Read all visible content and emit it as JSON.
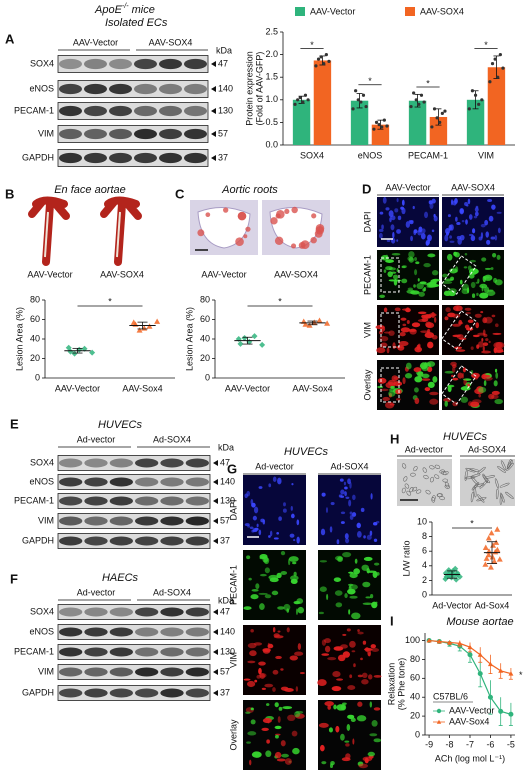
{
  "panel_A": {
    "letter": "A",
    "title": {
      "main": "ApoE",
      "sup": "-/-",
      "rest": " mice"
    },
    "subtitle": "Isolated ECs",
    "blot": {
      "header": [
        "AAV-Vector",
        "AAV-SOX4"
      ],
      "unit": "kDa",
      "rows": [
        {
          "label": "SOX4",
          "size": "47"
        },
        {
          "label": "eNOS",
          "size": "140"
        },
        {
          "label": "PECAM-1",
          "size": "130"
        },
        {
          "label": "VIM",
          "size": "57"
        },
        {
          "label": "GAPDH",
          "size": "37"
        }
      ]
    }
  },
  "panel_B": {
    "letter": "B",
    "title": "En face aortae",
    "image_labels": [
      "AAV-Vector",
      "AAV-SOX4"
    ]
  },
  "panel_C": {
    "letter": "C",
    "title": "Aortic roots",
    "image_labels": [
      "AAV-Vector",
      "AAV-SOX4"
    ]
  },
  "panel_D": {
    "letter": "D",
    "header": [
      "AAV-Vector",
      "AAV-SOX4"
    ],
    "rows": [
      "DAPI",
      "PECAM-1",
      "VIM",
      "Overlay"
    ]
  },
  "panel_E": {
    "letter": "E",
    "title": "HUVECs",
    "blot": {
      "header": [
        "Ad-vector",
        "Ad-SOX4"
      ],
      "unit": "kDa",
      "rows": [
        {
          "label": "SOX4",
          "size": "47"
        },
        {
          "label": "eNOS",
          "size": "140"
        },
        {
          "label": "PECAM-1",
          "size": "130"
        },
        {
          "label": "VIM",
          "size": "57"
        },
        {
          "label": "GAPDH",
          "size": "37"
        }
      ]
    }
  },
  "panel_F": {
    "letter": "F",
    "title": "HAECs",
    "blot": {
      "header": [
        "Ad-vector",
        "Ad-SOX4"
      ],
      "unit": "kDa",
      "rows": [
        {
          "label": "SOX4",
          "size": "47"
        },
        {
          "label": "eNOS",
          "size": "140"
        },
        {
          "label": "PECAM-1",
          "size": "130"
        },
        {
          "label": "VIM",
          "size": "57"
        },
        {
          "label": "GAPDH",
          "size": "37"
        }
      ]
    }
  },
  "panel_G": {
    "letter": "G",
    "title": "HUVECs",
    "header": [
      "Ad-vector",
      "Ad-SOX4"
    ],
    "rows": [
      "DAPI",
      "PECAM-1",
      "VIM",
      "Overlay"
    ]
  },
  "panel_H": {
    "letter": "H",
    "title": "HUVECs",
    "header": [
      "Ad-vector",
      "Ad-SOX4"
    ]
  },
  "panel_I": {
    "letter": "I"
  },
  "chart_data": [
    {
      "type": "bar",
      "ylabel": [
        "Protein expression",
        "(Fold of AAV-GFP)"
      ],
      "categories": [
        "SOX4",
        "eNOS",
        "PECAM-1",
        "VIM"
      ],
      "series": [
        {
          "name": "AAV-Vector",
          "color": "#2fb47c",
          "values": [
            1.0,
            0.98,
            0.98,
            1.0
          ],
          "errors": [
            0.08,
            0.16,
            0.14,
            0.2
          ],
          "points": [
            [
              0.9,
              1.0,
              1.05,
              0.95,
              1.1,
              1.0
            ],
            [
              0.8,
              1.2,
              1.0,
              0.95,
              1.1,
              0.85
            ],
            [
              0.85,
              1.15,
              1.0,
              0.9,
              1.1,
              0.95
            ],
            [
              0.8,
              1.2,
              1.1,
              0.9,
              1.0
            ]
          ]
        },
        {
          "name": "AAV-SOX4",
          "color": "#f26522",
          "values": [
            1.87,
            0.45,
            0.62,
            1.72
          ],
          "errors": [
            0.1,
            0.1,
            0.18,
            0.25
          ],
          "points": [
            [
              1.75,
              1.9,
              1.95,
              1.8,
              2.0,
              1.85
            ],
            [
              0.35,
              0.5,
              0.45,
              0.4,
              0.55,
              0.42
            ],
            [
              0.4,
              0.8,
              0.6,
              0.5,
              0.7,
              0.75
            ],
            [
              1.4,
              1.8,
              1.9,
              1.5,
              2.0,
              1.7
            ]
          ]
        }
      ],
      "annotations": [
        "*",
        "*",
        "*",
        "*"
      ],
      "legend": "top",
      "ylim": [
        0,
        2.5
      ],
      "yticks": [
        {
          "value": 0,
          "label": "0.0"
        },
        {
          "value": 0.5,
          "label": "0.5"
        },
        {
          "value": 1,
          "label": "1.0"
        },
        {
          "value": 1.5,
          "label": "1.5"
        },
        {
          "value": 2,
          "label": "2.0"
        },
        {
          "value": 2.5,
          "label": "2.5"
        }
      ]
    },
    {
      "type": "dot",
      "ylabel": "Lesion Area (%)",
      "categories": [
        "AAV-Vector",
        "AAV-Sox4"
      ],
      "colors": [
        "#2fb47c",
        "#f26522"
      ],
      "markers": [
        "diamond",
        "triangle"
      ],
      "points": [
        [
          31,
          27,
          25,
          29,
          30,
          26
        ],
        [
          57,
          55,
          49,
          51,
          53,
          58
        ]
      ],
      "means": [
        28,
        53.8
      ],
      "errors": [
        2.4,
        3.5
      ],
      "annotation": "*",
      "ylim": [
        0,
        80
      ],
      "yticks": [
        0,
        20,
        40,
        60,
        80
      ]
    },
    {
      "type": "dot",
      "ylabel": "Lesion Area (%)",
      "categories": [
        "AAV-Vector",
        "AAV-Sox4"
      ],
      "colors": [
        "#2fb47c",
        "#f26522"
      ],
      "markers": [
        "diamond",
        "triangle"
      ],
      "points": [
        [
          40,
          35,
          41,
          37,
          43,
          34
        ],
        [
          58,
          55,
          54,
          57,
          59,
          56
        ]
      ],
      "means": [
        38.3,
        56.5
      ],
      "errors": [
        3.5,
        1.9
      ],
      "annotation": "*",
      "ylim": [
        0,
        80
      ],
      "yticks": [
        0,
        20,
        40,
        60,
        80
      ]
    },
    {
      "type": "dot",
      "ylabel": "L/W ratio",
      "categories": [
        "Ad-Vector",
        "Ad-Sox4"
      ],
      "colors": [
        "#2fb47c",
        "#f26522"
      ],
      "markers": [
        "diamond",
        "triangle"
      ],
      "points": [
        [
          2.5,
          3.0,
          2.2,
          3.4,
          2.8,
          2.6,
          3.1,
          2.4,
          2.9,
          3.3,
          2.7,
          2.1,
          3.6,
          2.8,
          2.5,
          3.0
        ],
        [
          5.0,
          6.5,
          4.2,
          7.8,
          5.5,
          6.0,
          3.8,
          8.5,
          5.2,
          6.8,
          4.6,
          7.2,
          5.9,
          9.0,
          4.9,
          6.2
        ]
      ],
      "means": [
        2.8,
        5.8
      ],
      "errors": [
        0.5,
        1.5
      ],
      "annotation": "*",
      "ylim": [
        0,
        10
      ],
      "yticks": [
        0,
        2,
        4,
        6,
        8,
        10
      ]
    },
    {
      "type": "line",
      "title": "Mouse aortae",
      "xlabel": "ACh (log mol L⁻¹)",
      "ylabel": [
        "Relaxation",
        "(% Phe tone)"
      ],
      "legend_title": "C57BL/6",
      "legend": "lower left",
      "x": [
        -9,
        -8.5,
        -8,
        -7.5,
        -7,
        -6.5,
        -6,
        -5.5,
        -5
      ],
      "series": [
        {
          "name": "AAV-Vector",
          "color": "#2fb47c",
          "marker": "circle",
          "values": [
            100,
            99,
            97,
            94,
            85,
            65,
            40,
            25,
            22
          ],
          "errors": [
            1,
            2,
            3,
            5,
            8,
            14,
            18,
            15,
            12
          ]
        },
        {
          "name": "AAV-Sox4",
          "color": "#f26522",
          "marker": "triangle",
          "values": [
            100,
            99,
            98,
            97,
            93,
            85,
            75,
            68,
            65
          ],
          "errors": [
            1,
            1,
            2,
            3,
            5,
            8,
            10,
            8,
            6
          ]
        }
      ],
      "annotation": "*",
      "xlim": [
        -9.2,
        -4.8
      ],
      "xticks": [
        -9,
        -8,
        -7,
        -6,
        -5
      ],
      "ylim": [
        0,
        108
      ],
      "yticks": [
        0,
        20,
        40,
        60,
        80,
        100
      ]
    }
  ]
}
